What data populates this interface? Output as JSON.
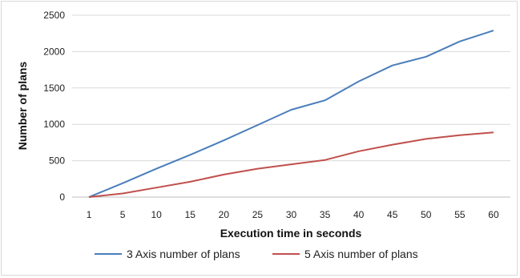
{
  "chart_data": {
    "type": "line",
    "x": [
      1,
      5,
      10,
      15,
      20,
      25,
      30,
      35,
      40,
      45,
      50,
      55,
      60
    ],
    "xlabel": "Execution time in seconds",
    "ylabel": "Number of plans",
    "ylim": [
      0,
      2500
    ],
    "yticks": [
      0,
      500,
      1000,
      1500,
      2000,
      2500
    ],
    "grid": "horizontal",
    "legend": "bottom",
    "series": [
      {
        "name": "3 Axis number of plans",
        "color": "#4a7ebb",
        "values": [
          0,
          190,
          390,
          580,
          780,
          990,
          1200,
          1330,
          1590,
          1810,
          1930,
          2140,
          2290
        ]
      },
      {
        "name": "5 Axis number of plans",
        "color": "#c0504d",
        "values": [
          0,
          50,
          130,
          210,
          310,
          390,
          450,
          510,
          630,
          720,
          800,
          850,
          890
        ]
      }
    ]
  }
}
